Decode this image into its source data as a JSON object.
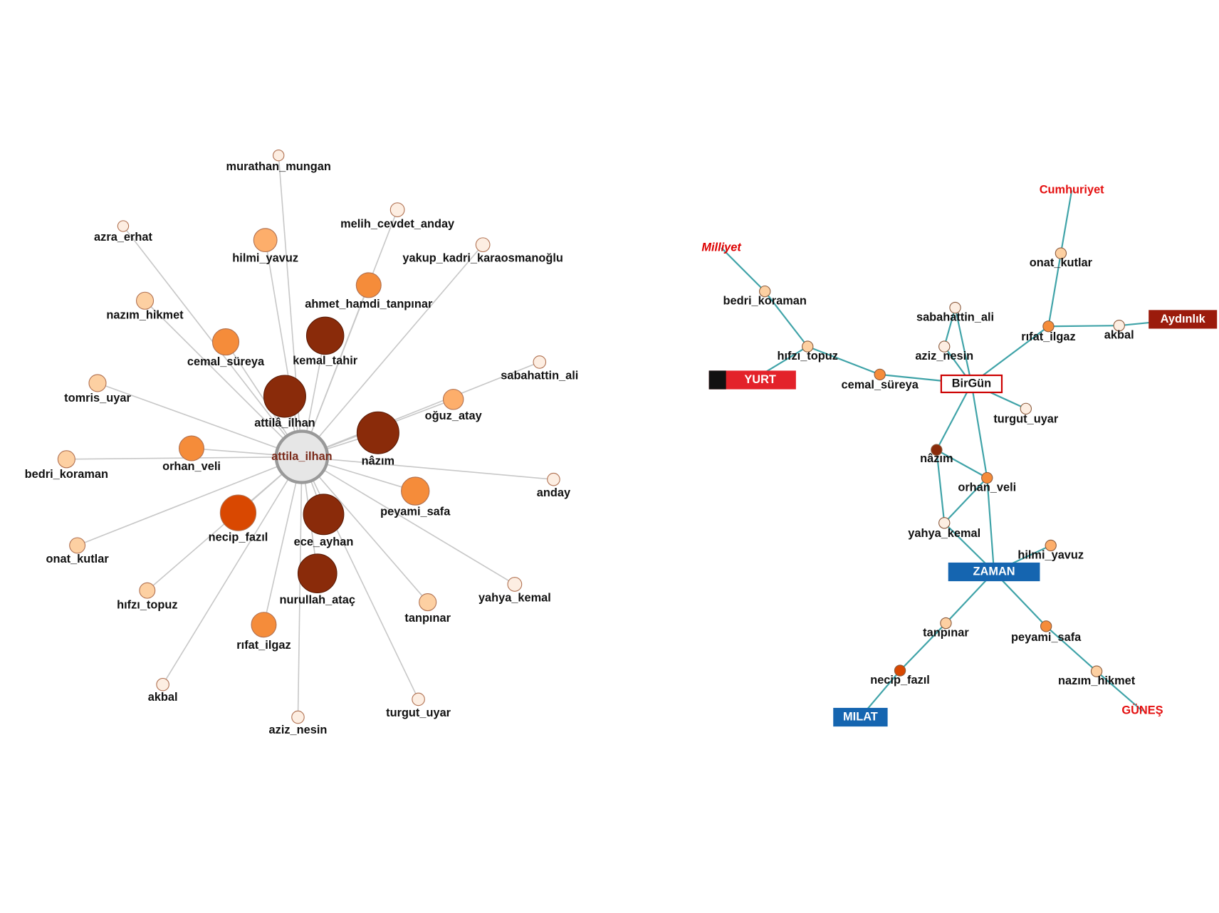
{
  "left_graph": {
    "center": "attila_ilhan",
    "nodes": [
      "murathan_mungan",
      "azra_erhat",
      "melih_cevdet_anday",
      "yakup_kadri_karaosmanoğlu",
      "hilmi_yavuz",
      "ahmet_hamdi_tanpınar",
      "nazım_hikmet",
      "kemal_tahir",
      "cemal_süreya",
      "sabahattin_ali",
      "tomris_uyar",
      "attilâ_ilhan",
      "oğuz_atay",
      "nâzım",
      "bedri_koraman",
      "orhan_veli",
      "anday",
      "peyami_safa",
      "necip_fazıl",
      "ece_ayhan",
      "onat_kutlar",
      "nurullah_ataç",
      "hıfzı_topuz",
      "yahya_kemal",
      "tanpınar",
      "rıfat_ilgaz",
      "akbal",
      "turgut_uyar",
      "aziz_nesin"
    ]
  },
  "right_graph": {
    "nodes": [
      "onat_kutlar",
      "bedri_koraman",
      "sabahattin_ali",
      "rıfat_ilgaz",
      "akbal",
      "hıfzı_topuz",
      "aziz_nesin",
      "cemal_süreya",
      "turgut_uyar",
      "nâzım",
      "orhan_veli",
      "yahya_kemal",
      "hilmi_yavuz",
      "tanpınar",
      "peyami_safa",
      "necip_fazıl",
      "nazım_hikmet"
    ],
    "newspapers": [
      "Cumhuriyet",
      "Milliyet",
      "Aydınlık",
      "YURT",
      "BirGün",
      "ZAMAN",
      "MILAT",
      "GÜNEŞ"
    ]
  }
}
